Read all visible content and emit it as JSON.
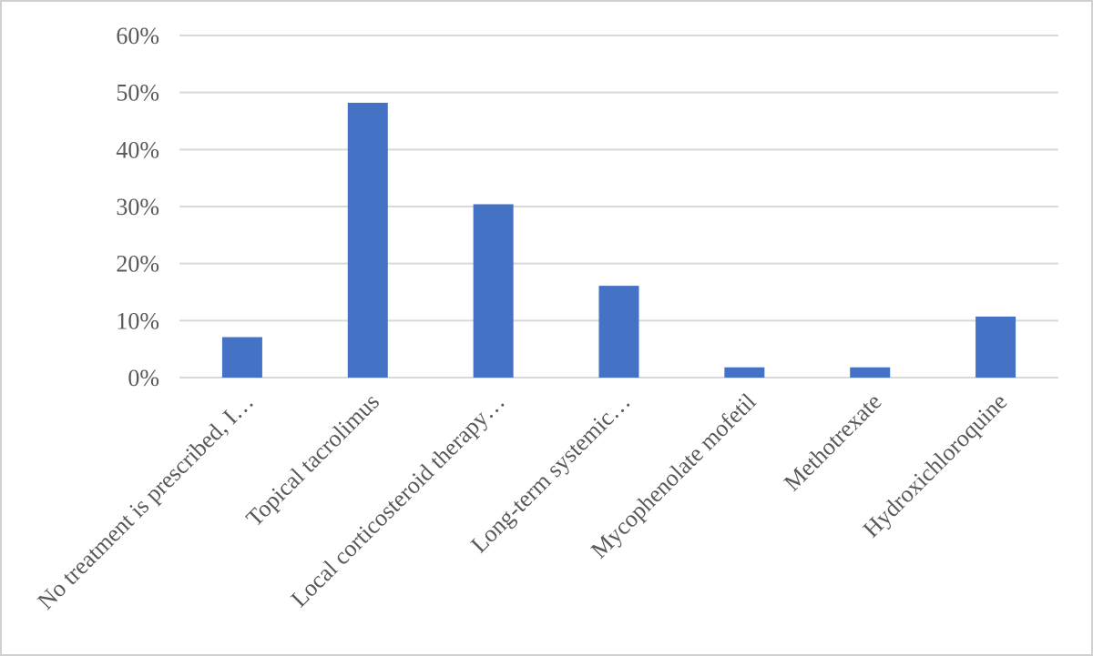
{
  "chart_data": {
    "type": "bar",
    "categories": [
      "No treatment is prescribed, I…",
      "Topical tacrolimus",
      "Local corticosteroid therapy…",
      "Long-term systemic…",
      "Mycophenolate mofetil",
      "Methotrexate",
      "Hydroxichloroquine"
    ],
    "values": [
      7.1,
      48.2,
      30.4,
      16.1,
      1.8,
      1.8,
      10.7
    ],
    "color": "#4472c4",
    "ylim": [
      0,
      60
    ],
    "yticks": [
      {
        "value": 0,
        "label": "0%"
      },
      {
        "value": 10,
        "label": "10%"
      },
      {
        "value": 20,
        "label": "20%"
      },
      {
        "value": 30,
        "label": "30%"
      },
      {
        "value": 40,
        "label": "40%"
      },
      {
        "value": 50,
        "label": "50%"
      },
      {
        "value": 60,
        "label": "60%"
      }
    ],
    "grid": true
  }
}
